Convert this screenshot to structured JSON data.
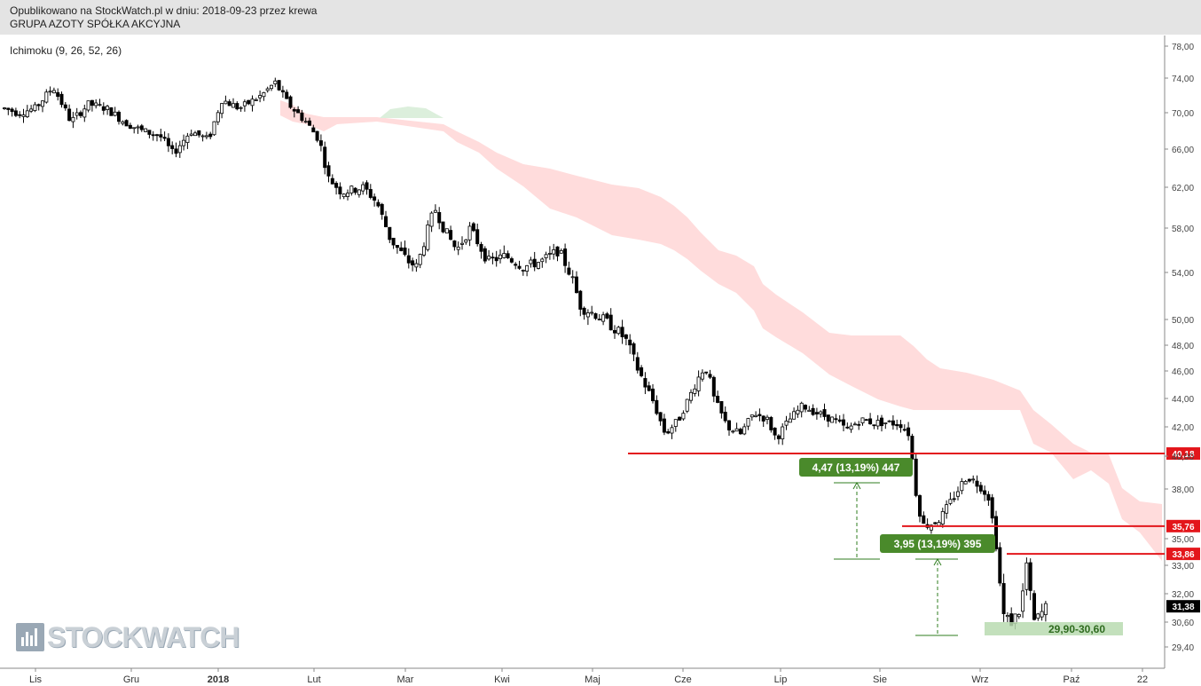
{
  "header": {
    "line1": "Opublikowano na StockWatch.pl w dniu: 2018-09-23 przez krewa",
    "line2": "GRUPA AZOTY SPÓŁKA AKCYJNA"
  },
  "indicator_label": "Ichimoku (9, 26, 52, 26)",
  "logo_text": "STOCKWATCH",
  "chart_data": {
    "type": "candlestick",
    "y_axis": {
      "ticks": [
        "78,00",
        "74,00",
        "70,00",
        "66,00",
        "62,00",
        "58,00",
        "54,00",
        "50,00",
        "48,00",
        "46,00",
        "44,00",
        "42,00",
        "40,00",
        "38,00",
        "35,00",
        "33,00",
        "32,00",
        "30,60",
        "29,40"
      ],
      "side": "right"
    },
    "x_axis": {
      "labels": [
        "Lis",
        "Gru",
        "2018",
        "Lut",
        "Mar",
        "Kwi",
        "Maj",
        "Cze",
        "Lip",
        "Sie",
        "Wrz",
        "Paź",
        "22"
      ]
    },
    "price_levels": [
      {
        "value": "40,18",
        "color": "#e3161b"
      },
      {
        "value": "35,76",
        "color": "#e3161b"
      },
      {
        "value": "33,86",
        "color": "#e3161b"
      }
    ],
    "last_price": {
      "value": "31,38",
      "color": "#000000"
    },
    "annotations": [
      {
        "text": "4,47 (13,19%) 447",
        "color": "#4a8a2b"
      },
      {
        "text": "3,95 (13,19%) 395",
        "color": "#4a8a2b"
      },
      {
        "text": "29,90-30,60",
        "color": "#2f6b1f"
      }
    ],
    "colors": {
      "bull": "#ffffff",
      "bear": "#000000",
      "cloud_bear": "#ffdcdc",
      "cloud_bull": "#dcefdc",
      "support_zone": "#b9dbb0"
    }
  }
}
